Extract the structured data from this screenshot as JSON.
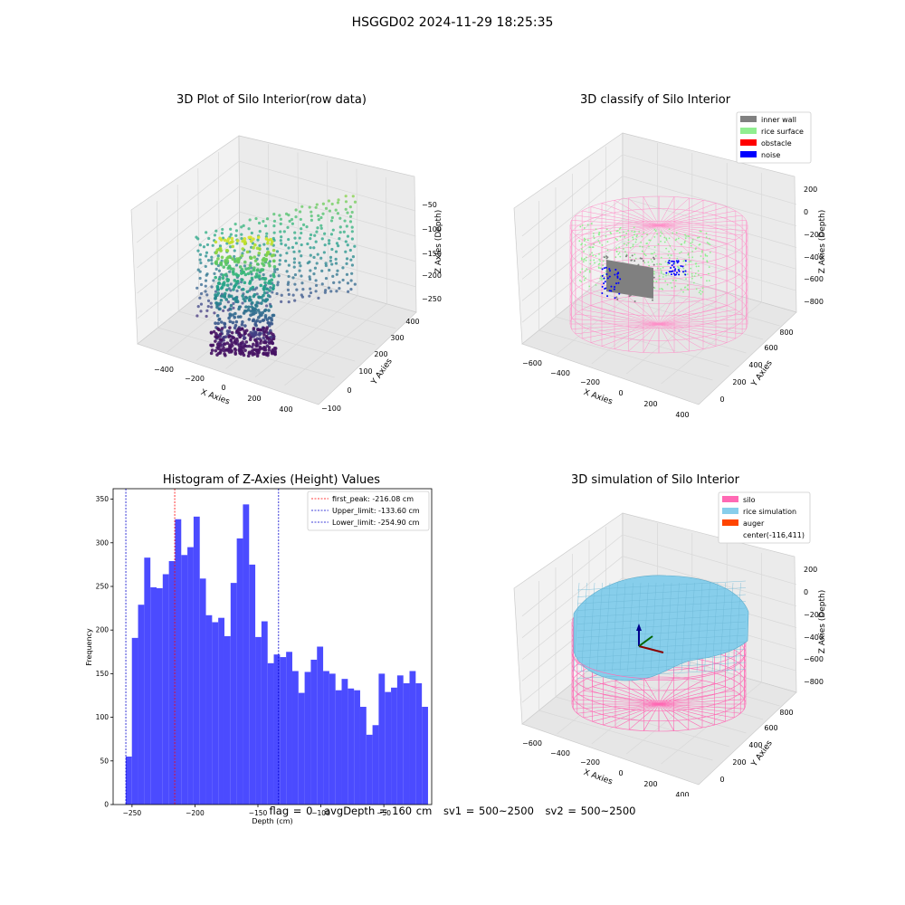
{
  "figure": {
    "suptitle": "HSGGD02 2024-11-29 18:25:35",
    "status": {
      "flag": "flag = 0",
      "avg_depth": "avgDepth = 160 cm",
      "sv1": "sv1 = 500~2500",
      "sv2": "sv2 = 500~2500"
    }
  },
  "colors": {
    "hist_bar": "#4b4bff",
    "first_peak_line": "#ff0000",
    "limit_line": "#0000cc",
    "inner_wall": "#808080",
    "rice_surface": "#90ee90",
    "obstacle": "#ff0000",
    "noise": "#0000ff",
    "silo": "#ff69b4",
    "rice_simulation": "#87ceeb",
    "auger": "#ff4500"
  },
  "chart_data": [
    {
      "type": "scatter",
      "projection": "3d",
      "title": "3D Plot of Silo Interior(row data)",
      "xlabel": "X Axies",
      "ylabel": "Y Axies",
      "zlabel": "Z Axies (Depth)",
      "x_ticks": [
        "−400",
        "−200",
        "0",
        "200",
        "400"
      ],
      "y_ticks": [
        "−100",
        "0",
        "100",
        "200",
        "300",
        "400"
      ],
      "z_ticks": [
        "−50",
        "−100",
        "−150",
        "−200",
        "−250"
      ],
      "colormap": "viridis",
      "xlim": [
        -520,
        520
      ],
      "ylim": [
        -120,
        430
      ],
      "zlim": [
        -270,
        -30
      ]
    },
    {
      "type": "scatter",
      "projection": "3d",
      "title": "3D classify of Silo Interior",
      "xlabel": "X Axies",
      "ylabel": "Y Axies",
      "zlabel": "Z Axies (Depth)",
      "x_ticks": [
        "−600",
        "−400",
        "−200",
        "0",
        "200",
        "400"
      ],
      "y_ticks": [
        "0",
        "200",
        "400",
        "600",
        "800"
      ],
      "z_ticks": [
        "200",
        "0",
        "−200",
        "−400",
        "−600",
        "−800"
      ],
      "legend": [
        "inner wall",
        "rice surface",
        "obstacle",
        "noise"
      ],
      "legend_position": "top-right"
    },
    {
      "type": "bar",
      "title": "Histogram of Z-Axies (Height) Values",
      "xlabel": "Depth (cm)",
      "ylabel": "Frequency",
      "xlim": [
        -265,
        -12
      ],
      "ylim": [
        0,
        362
      ],
      "x_ticks": [
        -250,
        -200,
        -150,
        -100,
        -50
      ],
      "x_tick_labels": [
        "−250",
        "−200",
        "−150",
        "−100",
        "−50"
      ],
      "y_ticks": [
        0,
        50,
        100,
        150,
        200,
        250,
        300,
        350
      ],
      "bin_start": -255,
      "bin_width": 4.9,
      "values": [
        55,
        191,
        229,
        283,
        249,
        248,
        264,
        279,
        327,
        286,
        295,
        330,
        259,
        217,
        209,
        214,
        193,
        254,
        305,
        344,
        275,
        192,
        210,
        162,
        172,
        169,
        175,
        153,
        128,
        152,
        166,
        181,
        153,
        150,
        131,
        144,
        133,
        131,
        112,
        80,
        91,
        150,
        129,
        134,
        148,
        139,
        153,
        139,
        112
      ],
      "vlines": [
        {
          "label": "first_peak: -216.08 cm",
          "x": -216.08,
          "color": "#ff0000"
        },
        {
          "label": "Upper_limit: -133.60 cm",
          "x": -133.6,
          "color": "#0000cc"
        },
        {
          "label": "Lower_limit: -254.90 cm",
          "x": -254.9,
          "color": "#0000cc"
        }
      ],
      "legend_position": "top-right"
    },
    {
      "type": "surface",
      "projection": "3d",
      "title": "3D simulation of Silo Interior",
      "xlabel": "X Axies",
      "ylabel": "Y Axies",
      "zlabel": "Z Axies (Depth)",
      "x_ticks": [
        "−600",
        "−400",
        "−200",
        "0",
        "200",
        "400"
      ],
      "y_ticks": [
        "0",
        "200",
        "400",
        "600",
        "800"
      ],
      "z_ticks": [
        "200",
        "0",
        "−200",
        "−400",
        "−600",
        "−800"
      ],
      "legend": [
        "silo",
        "rice simulation",
        "auger",
        "center(-116,411)"
      ],
      "legend_position": "top-right"
    }
  ]
}
